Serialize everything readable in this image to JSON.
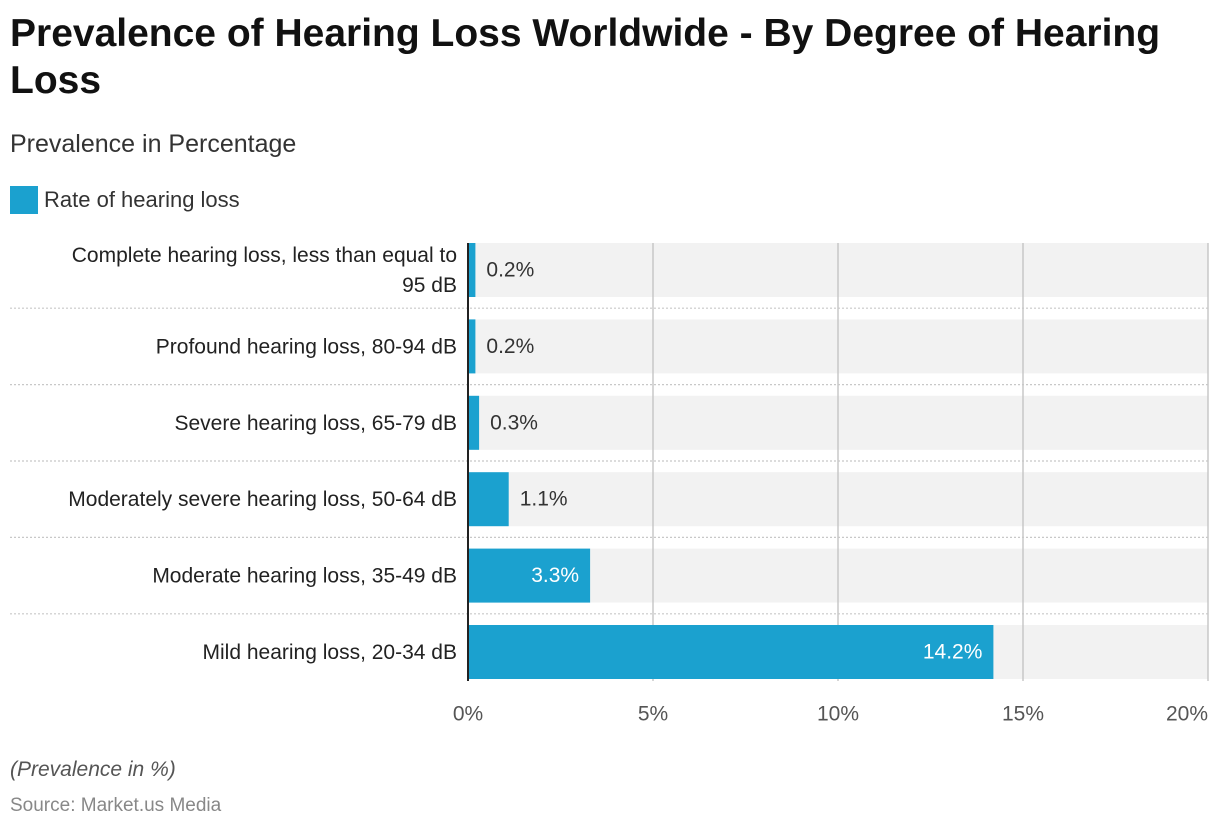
{
  "title": "Prevalence of Hearing Loss Worldwide - By Degree of Hearing Loss",
  "subtitle": "Prevalence in Percentage",
  "legend": {
    "label": "Rate of hearing loss",
    "color": "#1ba1cf"
  },
  "note": "(Prevalence in %)",
  "source": "Source: Market.us Media",
  "chart_data": {
    "type": "bar",
    "orientation": "horizontal",
    "categories": [
      [
        "Complete hearing loss, less than equal to",
        "95 dB"
      ],
      [
        "Profound hearing loss, 80-94 dB"
      ],
      [
        "Severe hearing loss, 65-79 dB"
      ],
      [
        "Moderately severe hearing loss, 50-64 dB"
      ],
      [
        "Moderate hearing loss, 35-49 dB"
      ],
      [
        "Mild hearing loss, 20-34 dB"
      ]
    ],
    "series": [
      {
        "name": "Rate of hearing loss",
        "values": [
          0.2,
          0.2,
          0.3,
          1.1,
          3.3,
          14.2
        ],
        "labels": [
          "0.2%",
          "0.2%",
          "0.3%",
          "1.1%",
          "3.3%",
          "14.2%"
        ]
      }
    ],
    "xlim": [
      0,
      20
    ],
    "xticks": [
      0,
      5,
      10,
      15,
      20
    ],
    "xtick_labels": [
      "0%",
      "5%",
      "10%",
      "15%",
      "20%"
    ],
    "grid": true,
    "legend_position": "top-left",
    "colors": {
      "bar": "#1ba1cf",
      "band": "#f2f2f2",
      "grid": "#c8c8c8",
      "axis": "#222222"
    }
  }
}
